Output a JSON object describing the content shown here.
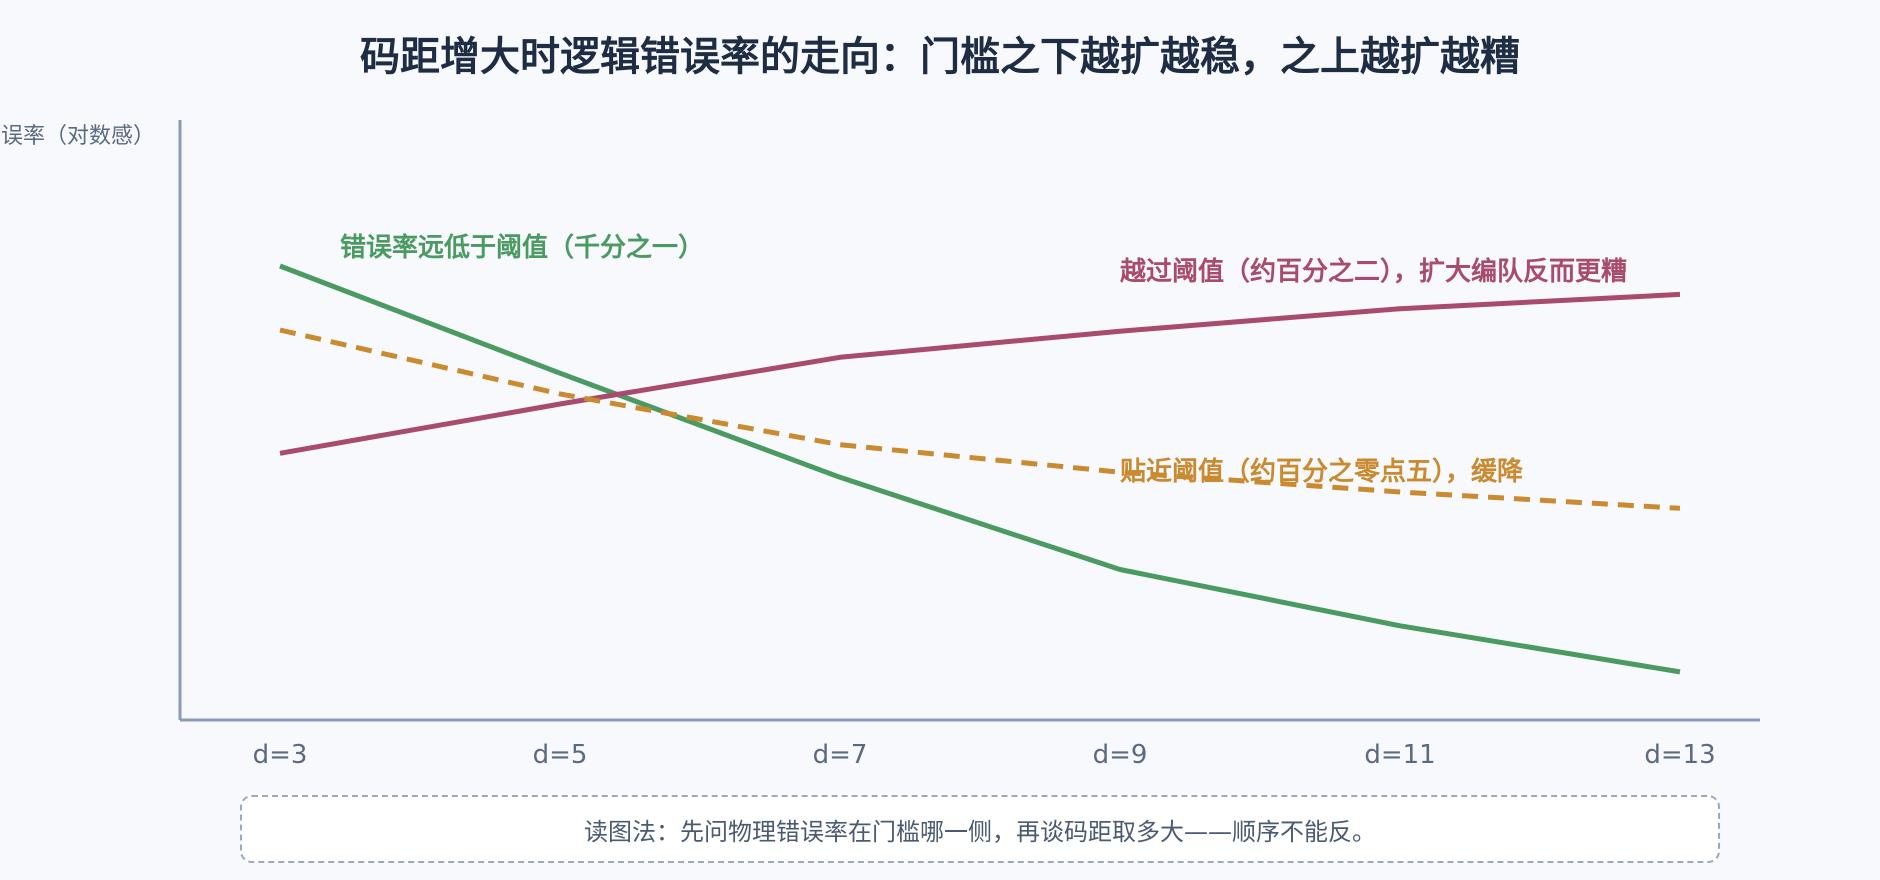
{
  "title": "码距增大时逻辑错误率的走向：门槛之下越扩越稳，之上越扩越糟",
  "note": "读图法：先问物理错误率在门槛哪一侧，再谈码距取多大——顺序不能反。",
  "chart_data": {
    "type": "line",
    "ylabel": "误率（对数感）",
    "xlabel": "",
    "categories": [
      "d=3",
      "d=5",
      "d=7",
      "d=9",
      "d=11",
      "d=13"
    ],
    "y_scale": "log",
    "y_tick_labels": false,
    "grid": false,
    "series": [
      {
        "name": "错误率远低于阈值（千分之一）",
        "color": "#4a9a62",
        "dash": false,
        "values": [
          3.6,
          1.7,
          0.82,
          0.43,
          0.29,
          0.21
        ]
      },
      {
        "name": "越过阈值（约百分之二），扩大编队反而更糟",
        "color": "#a84b6c",
        "dash": false,
        "values": [
          0.97,
          1.37,
          1.9,
          2.28,
          2.67,
          2.95
        ]
      },
      {
        "name": "贴近阈值（约百分之零点五），缓降",
        "color": "#c98a30",
        "dash": true,
        "values": [
          2.3,
          1.47,
          1.03,
          0.85,
          0.74,
          0.66
        ]
      }
    ]
  }
}
